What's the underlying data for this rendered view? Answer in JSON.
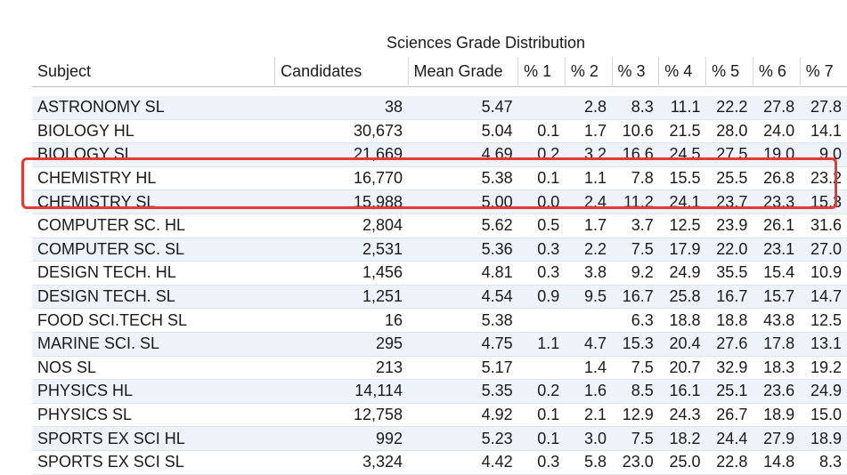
{
  "chart_data": {
    "type": "table",
    "title": "Sciences Grade Distribution",
    "columns": [
      "Subject",
      "Candidates",
      "Mean Grade",
      "% 1",
      "% 2",
      "% 3",
      "% 4",
      "% 5",
      "% 6",
      "% 7"
    ],
    "rows": [
      [
        "ASTRONOMY SL",
        "38",
        "5.47",
        "",
        "2.8",
        "8.3",
        "11.1",
        "22.2",
        "27.8",
        "27.8"
      ],
      [
        "BIOLOGY HL",
        "30,673",
        "5.04",
        "0.1",
        "1.7",
        "10.6",
        "21.5",
        "28.0",
        "24.0",
        "14.1"
      ],
      [
        "BIOLOGY SL",
        "21,669",
        "4.69",
        "0.2",
        "3.2",
        "16.6",
        "24.5",
        "27.5",
        "19.0",
        "9.0"
      ],
      [
        "CHEMISTRY HL",
        "16,770",
        "5.38",
        "0.1",
        "1.1",
        "7.8",
        "15.5",
        "25.5",
        "26.8",
        "23.2"
      ],
      [
        "CHEMISTRY SL",
        "15,988",
        "5.00",
        "0.0",
        "2.4",
        "11.2",
        "24.1",
        "23.7",
        "23.3",
        "15.3"
      ],
      [
        "COMPUTER SC. HL",
        "2,804",
        "5.62",
        "0.5",
        "1.7",
        "3.7",
        "12.5",
        "23.9",
        "26.1",
        "31.6"
      ],
      [
        "COMPUTER SC. SL",
        "2,531",
        "5.36",
        "0.3",
        "2.2",
        "7.5",
        "17.9",
        "22.0",
        "23.1",
        "27.0"
      ],
      [
        "DESIGN TECH. HL",
        "1,456",
        "4.81",
        "0.3",
        "3.8",
        "9.2",
        "24.9",
        "35.5",
        "15.4",
        "10.9"
      ],
      [
        "DESIGN TECH. SL",
        "1,251",
        "4.54",
        "0.9",
        "9.5",
        "16.7",
        "25.8",
        "16.7",
        "15.7",
        "14.7"
      ],
      [
        "FOOD SCI.TECH SL",
        "16",
        "5.38",
        "",
        "",
        "6.3",
        "18.8",
        "18.8",
        "43.8",
        "12.5"
      ],
      [
        "MARINE SCI. SL",
        "295",
        "4.75",
        "1.1",
        "4.7",
        "15.3",
        "20.4",
        "27.6",
        "17.8",
        "13.1"
      ],
      [
        "NOS SL",
        "213",
        "5.17",
        "",
        "1.4",
        "7.5",
        "20.7",
        "32.9",
        "18.3",
        "19.2"
      ],
      [
        "PHYSICS HL",
        "14,114",
        "5.35",
        "0.2",
        "1.6",
        "8.5",
        "16.1",
        "25.1",
        "23.6",
        "24.9"
      ],
      [
        "PHYSICS SL",
        "12,758",
        "4.92",
        "0.1",
        "2.1",
        "12.9",
        "24.3",
        "26.7",
        "18.9",
        "15.0"
      ],
      [
        "SPORTS EX SCI HL",
        "992",
        "5.23",
        "0.1",
        "3.0",
        "7.5",
        "18.2",
        "24.4",
        "27.9",
        "18.9"
      ],
      [
        "SPORTS EX SCI SL",
        "3,324",
        "4.42",
        "0.3",
        "5.8",
        "23.0",
        "25.0",
        "22.8",
        "14.8",
        "8.3"
      ]
    ],
    "highlighted_rows": [
      "CHEMISTRY HL",
      "CHEMISTRY SL"
    ],
    "highlight_color": "#e53935",
    "stripe_color": "#eef3f9"
  }
}
